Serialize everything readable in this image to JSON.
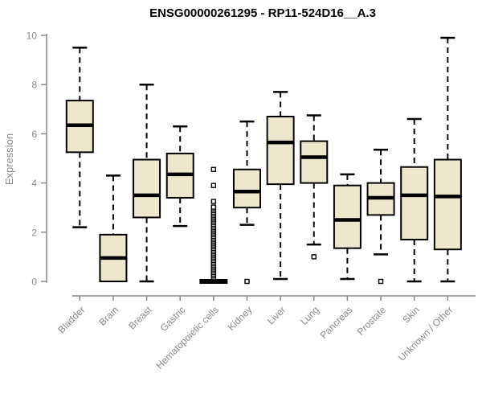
{
  "chart_data": {
    "type": "box",
    "title": "ENSG00000261295 - RP11-524D16__A.3",
    "ylabel": "Expression",
    "xlabel": "",
    "ylim": [
      0,
      10
    ],
    "yticks": [
      0,
      2,
      4,
      6,
      8,
      10
    ],
    "grid": false,
    "legend": "none",
    "colors": {
      "box_fill": "#EDE8CD",
      "box_stroke": "#000000",
      "axis": "#8a8a8a",
      "title": "#000000",
      "background": "#ffffff"
    },
    "categories": [
      "Bladder",
      "Brain",
      "Breast",
      "Gastric",
      "Hematopoietic cells",
      "Kidney",
      "Liver",
      "Lung",
      "Pancreas",
      "Prostate",
      "Skin",
      "Unknown / Other"
    ],
    "series": [
      {
        "category": "Bladder",
        "min": 2.2,
        "q1": 5.25,
        "median": 6.35,
        "q3": 7.35,
        "max": 9.5,
        "outliers": []
      },
      {
        "category": "Brain",
        "min": 0,
        "q1": 0,
        "median": 0.95,
        "q3": 1.9,
        "max": 4.3,
        "outliers": []
      },
      {
        "category": "Breast",
        "min": 0,
        "q1": 2.6,
        "median": 3.5,
        "q3": 4.95,
        "max": 8.0,
        "outliers": []
      },
      {
        "category": "Gastric",
        "min": 2.25,
        "q1": 3.4,
        "median": 4.35,
        "q3": 5.2,
        "max": 6.3,
        "outliers": []
      },
      {
        "category": "Hematopoietic cells",
        "min": 0,
        "q1": 0,
        "median": 0,
        "q3": 0,
        "max": 0,
        "outliers": [
          0.15,
          0.22,
          0.29,
          0.36,
          0.43,
          0.5,
          0.57,
          0.64,
          0.71,
          0.78,
          0.85,
          0.92,
          0.99,
          1.06,
          1.13,
          1.2,
          1.27,
          1.34,
          1.41,
          1.48,
          1.55,
          1.62,
          1.69,
          1.76,
          1.83,
          1.9,
          1.97,
          2.04,
          2.11,
          2.18,
          2.25,
          2.32,
          2.39,
          2.46,
          2.53,
          2.6,
          2.67,
          2.74,
          2.81,
          2.88,
          2.95,
          3.02,
          3.25,
          3.9,
          4.55
        ]
      },
      {
        "category": "Kidney",
        "min": 2.3,
        "q1": 3.0,
        "median": 3.65,
        "q3": 4.55,
        "max": 6.5,
        "outliers": [
          0
        ]
      },
      {
        "category": "Liver",
        "min": 0.1,
        "q1": 3.95,
        "median": 5.65,
        "q3": 6.7,
        "max": 7.7,
        "outliers": []
      },
      {
        "category": "Lung",
        "min": 1.5,
        "q1": 4.0,
        "median": 5.05,
        "q3": 5.7,
        "max": 6.75,
        "outliers": [
          1.0
        ]
      },
      {
        "category": "Pancreas",
        "min": 0.1,
        "q1": 1.35,
        "median": 2.5,
        "q3": 3.9,
        "max": 4.35,
        "outliers": []
      },
      {
        "category": "Prostate",
        "min": 1.1,
        "q1": 2.7,
        "median": 3.4,
        "q3": 4.0,
        "max": 5.35,
        "outliers": [
          0
        ]
      },
      {
        "category": "Skin",
        "min": 0,
        "q1": 1.7,
        "median": 3.5,
        "q3": 4.65,
        "max": 6.6,
        "outliers": []
      },
      {
        "category": "Unknown / Other",
        "min": 0,
        "q1": 1.3,
        "median": 3.45,
        "q3": 4.95,
        "max": 9.9,
        "outliers": []
      }
    ]
  }
}
